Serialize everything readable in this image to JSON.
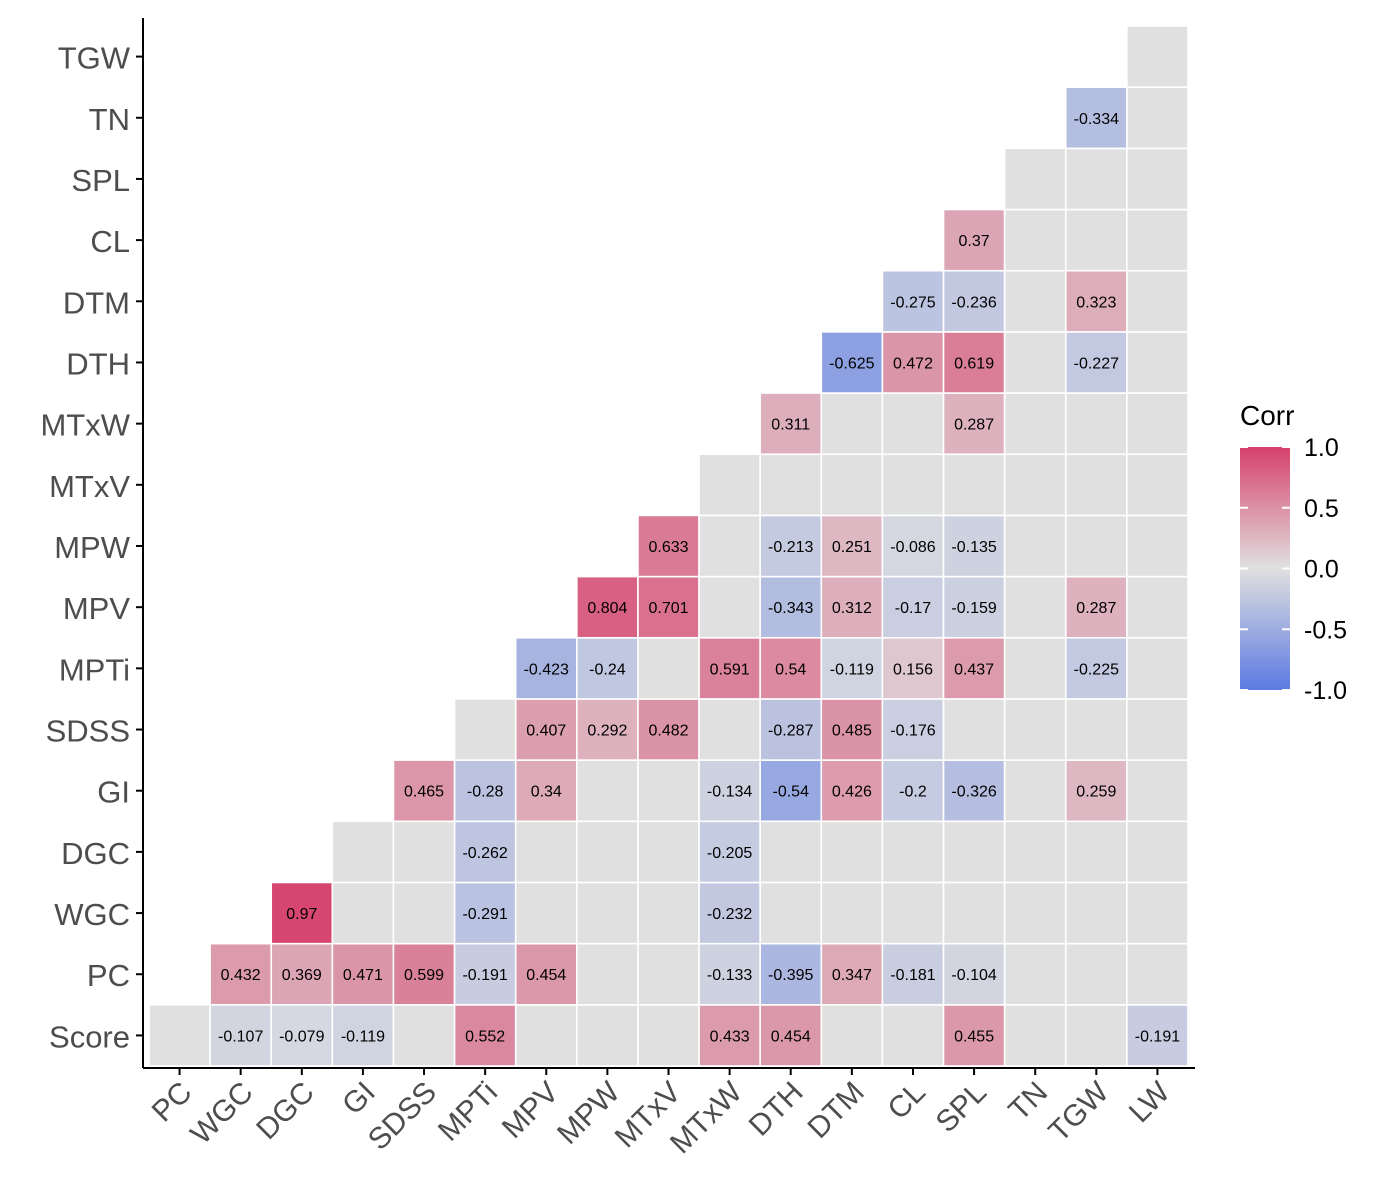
{
  "chart_data": {
    "type": "heatmap",
    "title": "",
    "xlabel": "",
    "ylabel": "",
    "x_categories": [
      "PC",
      "WGC",
      "DGC",
      "GI",
      "SDSS",
      "MPTi",
      "MPV",
      "MPW",
      "MTxV",
      "MTxW",
      "DTH",
      "DTM",
      "CL",
      "SPL",
      "TN",
      "TGW",
      "LW"
    ],
    "y_categories": [
      "Score",
      "PC",
      "WGC",
      "DGC",
      "GI",
      "SDSS",
      "MPTi",
      "MPV",
      "MPW",
      "MTxV",
      "MTxW",
      "DTH",
      "DTM",
      "CL",
      "SPL",
      "TN",
      "TGW"
    ],
    "rows": {
      "Score": [
        "",
        "-0.107",
        "-0.079",
        "-0.119",
        "",
        "0.552",
        "",
        "",
        "",
        "0.433",
        "0.454",
        "",
        "",
        "0.455",
        "",
        "",
        "-0.191"
      ],
      "PC": [
        null,
        "0.432",
        "0.369",
        "0.471",
        "0.599",
        "-0.191",
        "0.454",
        "",
        "",
        "-0.133",
        "-0.395",
        "0.347",
        "-0.181",
        "-0.104",
        "",
        "",
        ""
      ],
      "WGC": [
        null,
        null,
        "0.97",
        "",
        "",
        "-0.291",
        "",
        "",
        "",
        "-0.232",
        "",
        "",
        "",
        "",
        "",
        "",
        ""
      ],
      "DGC": [
        null,
        null,
        null,
        "",
        "",
        "-0.262",
        "",
        "",
        "",
        "-0.205",
        "",
        "",
        "",
        "",
        "",
        "",
        ""
      ],
      "GI": [
        null,
        null,
        null,
        null,
        "0.465",
        "-0.28",
        "0.34",
        "",
        "",
        "-0.134",
        "-0.54",
        "0.426",
        "-0.2",
        "-0.326",
        "",
        "0.259",
        ""
      ],
      "SDSS": [
        null,
        null,
        null,
        null,
        null,
        "",
        "0.407",
        "0.292",
        "0.482",
        "",
        "-0.287",
        "0.485",
        "-0.176",
        "",
        "",
        "",
        ""
      ],
      "MPTi": [
        null,
        null,
        null,
        null,
        null,
        null,
        "-0.423",
        "-0.24",
        "",
        "0.591",
        "0.54",
        "-0.119",
        "0.156",
        "0.437",
        "",
        "-0.225",
        ""
      ],
      "MPV": [
        null,
        null,
        null,
        null,
        null,
        null,
        null,
        "0.804",
        "0.701",
        "",
        "-0.343",
        "0.312",
        "-0.17",
        "-0.159",
        "",
        "0.287",
        ""
      ],
      "MPW": [
        null,
        null,
        null,
        null,
        null,
        null,
        null,
        null,
        "0.633",
        "",
        "-0.213",
        "0.251",
        "-0.086",
        "-0.135",
        "",
        "",
        ""
      ],
      "MTxV": [
        null,
        null,
        null,
        null,
        null,
        null,
        null,
        null,
        null,
        "",
        "",
        "",
        "",
        "",
        "",
        "",
        ""
      ],
      "MTxW": [
        null,
        null,
        null,
        null,
        null,
        null,
        null,
        null,
        null,
        null,
        "0.311",
        "",
        "",
        "0.287",
        "",
        "",
        ""
      ],
      "DTH": [
        null,
        null,
        null,
        null,
        null,
        null,
        null,
        null,
        null,
        null,
        null,
        "-0.625",
        "0.472",
        "0.619",
        "",
        "-0.227",
        ""
      ],
      "DTM": [
        null,
        null,
        null,
        null,
        null,
        null,
        null,
        null,
        null,
        null,
        null,
        null,
        "-0.275",
        "-0.236",
        "",
        "0.323",
        ""
      ],
      "CL": [
        null,
        null,
        null,
        null,
        null,
        null,
        null,
        null,
        null,
        null,
        null,
        null,
        null,
        "0.37",
        "",
        "",
        ""
      ],
      "SPL": [
        null,
        null,
        null,
        null,
        null,
        null,
        null,
        null,
        null,
        null,
        null,
        null,
        null,
        null,
        "",
        "",
        ""
      ],
      "TN": [
        null,
        null,
        null,
        null,
        null,
        null,
        null,
        null,
        null,
        null,
        null,
        null,
        null,
        null,
        null,
        "-0.334",
        ""
      ],
      "TGW": [
        null,
        null,
        null,
        null,
        null,
        null,
        null,
        null,
        null,
        null,
        null,
        null,
        null,
        null,
        null,
        null,
        ""
      ]
    },
    "legend": {
      "title": "Corr",
      "ticks": [
        "1.0",
        "0.5",
        "0.0",
        "-0.5",
        "-1.0"
      ],
      "range": [
        -1,
        1
      ],
      "placement": "right"
    },
    "colors": {
      "high": "#d6416b",
      "mid": "#e0e0e0",
      "low": "#5b79e1",
      "nonsignificant": "#e0e0e0",
      "grid_line": "#ffffff",
      "axis": "#000000"
    }
  }
}
